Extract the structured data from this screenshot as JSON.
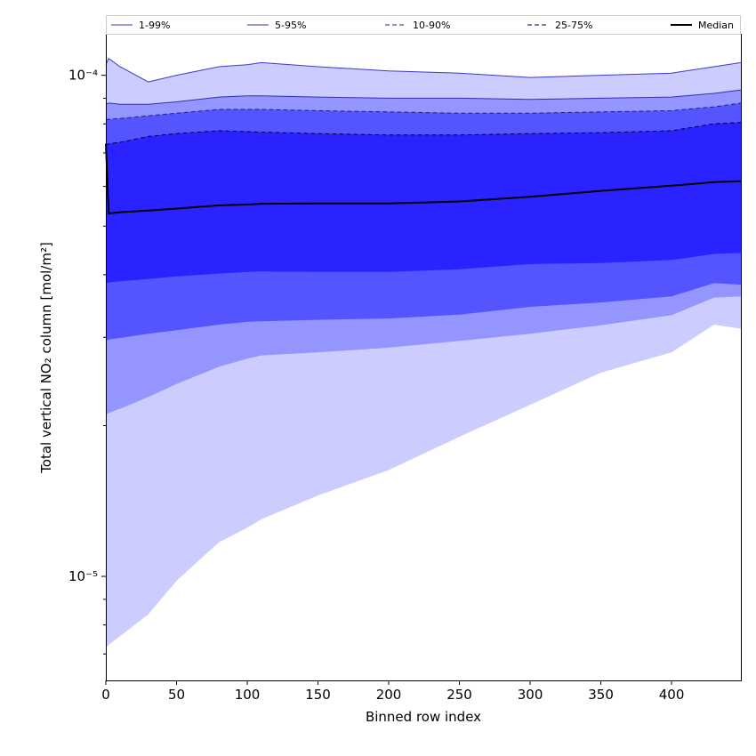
{
  "chart_data": {
    "type": "area",
    "xlabel": "Binned row index",
    "ylabel": "Total vertical NO₂ column [mol/m²]",
    "xlim": [
      0,
      449
    ],
    "ylim": [
      6.2e-06,
      0.000121
    ],
    "y_scale": "log",
    "x_ticks": [
      0,
      50,
      100,
      150,
      200,
      250,
      300,
      350,
      400
    ],
    "y_ticks": [
      {
        "value": 1e-05,
        "label": "10⁻⁵"
      },
      {
        "value": 0.0001,
        "label": "10⁻⁴"
      }
    ],
    "legend_position": "top",
    "x": [
      0,
      2,
      10,
      30,
      50,
      80,
      100,
      110,
      150,
      200,
      250,
      300,
      350,
      400,
      430,
      449
    ],
    "series": [
      {
        "name": "1-99%",
        "color": "#ccccff",
        "lower": [
          7.2e-06,
          7.3e-06,
          7.6e-06,
          8.4e-06,
          9.8e-06,
          1.17e-05,
          1.25e-05,
          1.3e-05,
          1.45e-05,
          1.63e-05,
          1.9e-05,
          2.2e-05,
          2.55e-05,
          2.8e-05,
          3.18e-05,
          3.12e-05
        ],
        "upper": [
          0.000105,
          0.000108,
          0.000104,
          9.7e-05,
          0.0001,
          0.000104,
          0.000105,
          0.000106,
          0.000104,
          0.000102,
          0.000101,
          9.9e-05,
          0.0001,
          0.000101,
          0.000104,
          0.000106
        ]
      },
      {
        "name": "5-95%",
        "color": "#9595ff",
        "lower": [
          2.1e-05,
          2.12e-05,
          2.16e-05,
          2.28e-05,
          2.42e-05,
          2.62e-05,
          2.72e-05,
          2.76e-05,
          2.8e-05,
          2.86e-05,
          2.95e-05,
          3.05e-05,
          3.17e-05,
          3.32e-05,
          3.6e-05,
          3.62e-05
        ],
        "upper": [
          8.75e-05,
          8.8e-05,
          8.75e-05,
          8.75e-05,
          8.85e-05,
          9.05e-05,
          9.1e-05,
          9.1e-05,
          9.05e-05,
          9e-05,
          9e-05,
          8.95e-05,
          9e-05,
          9.05e-05,
          9.2e-05,
          9.35e-05
        ]
      },
      {
        "name": "10-90%",
        "color": "#5555ff",
        "lower": [
          2.95e-05,
          2.97e-05,
          2.99e-05,
          3.05e-05,
          3.1e-05,
          3.18e-05,
          3.22e-05,
          3.23e-05,
          3.25e-05,
          3.27e-05,
          3.33e-05,
          3.45e-05,
          3.52e-05,
          3.62e-05,
          3.85e-05,
          3.82e-05
        ],
        "upper": [
          8.15e-05,
          8.17e-05,
          8.2e-05,
          8.3e-05,
          8.4e-05,
          8.55e-05,
          8.55e-05,
          8.55e-05,
          8.5e-05,
          8.45e-05,
          8.4e-05,
          8.4e-05,
          8.45e-05,
          8.5e-05,
          8.65e-05,
          8.8e-05
        ]
      },
      {
        "name": "25-75%",
        "color": "#2a22ff",
        "lower": [
          3.85e-05,
          3.86e-05,
          3.88e-05,
          3.92e-05,
          3.97e-05,
          4.02e-05,
          4.05e-05,
          4.06e-05,
          4.05e-05,
          4.05e-05,
          4.1e-05,
          4.2e-05,
          4.22e-05,
          4.28e-05,
          4.4e-05,
          4.42e-05
        ],
        "upper": [
          7.25e-05,
          7.3e-05,
          7.35e-05,
          7.55e-05,
          7.65e-05,
          7.75e-05,
          7.72e-05,
          7.7e-05,
          7.65e-05,
          7.6e-05,
          7.6e-05,
          7.65e-05,
          7.68e-05,
          7.75e-05,
          8e-05,
          8.05e-05
        ]
      }
    ],
    "median": {
      "name": "Median",
      "color": "#000000",
      "values": [
        7.3e-05,
        5.3e-05,
        5.33e-05,
        5.37e-05,
        5.42e-05,
        5.5e-05,
        5.52e-05,
        5.54e-05,
        5.55e-05,
        5.55e-05,
        5.6e-05,
        5.72e-05,
        5.88e-05,
        6.02e-05,
        6.12e-05,
        6.15e-05
      ]
    }
  }
}
